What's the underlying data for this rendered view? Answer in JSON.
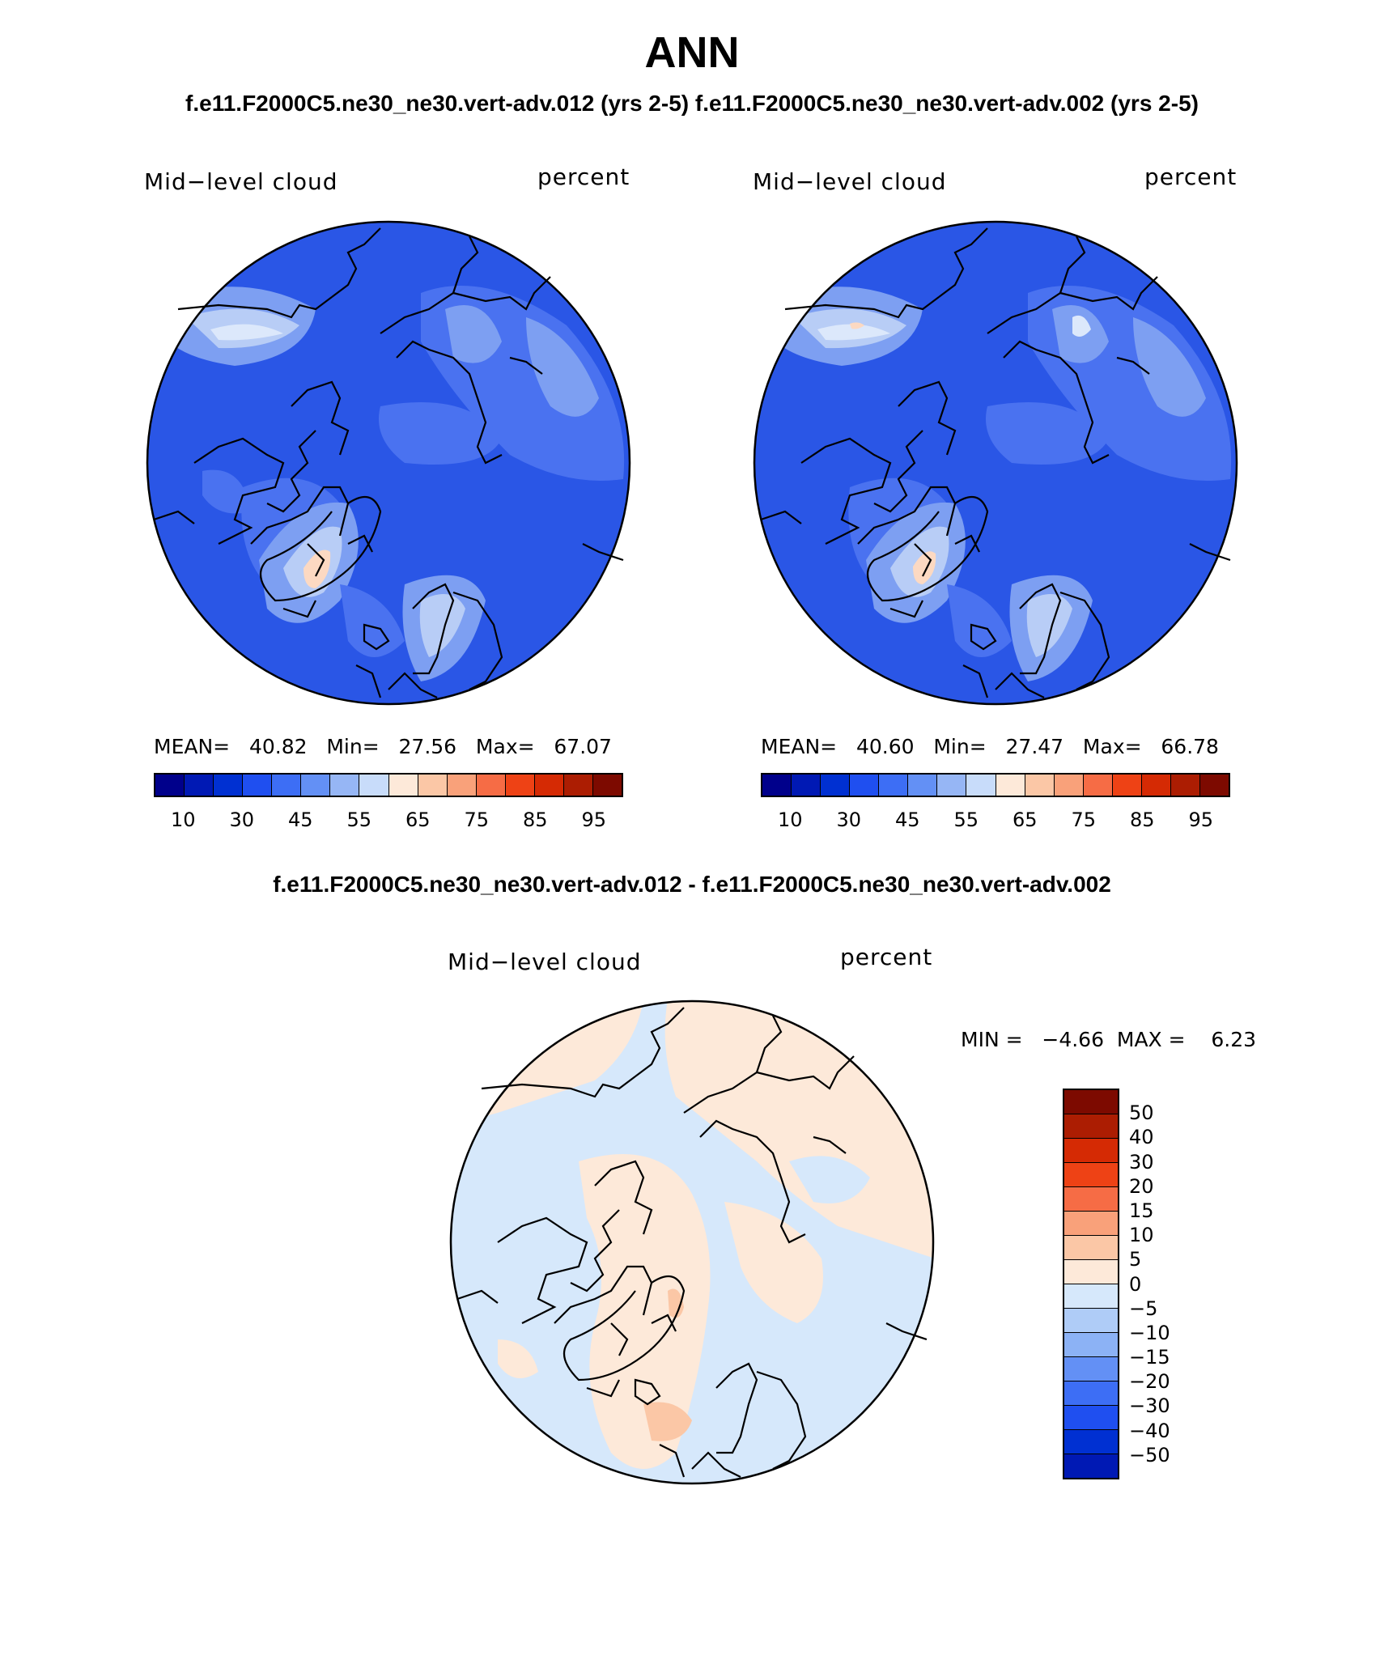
{
  "title": "ANN",
  "subtitle": "f.e11.F2000C5.ne30_ne30.vert-adv.012 (yrs 2-5)  f.e11.F2000C5.ne30_ne30.vert-adv.002 (yrs 2-5)",
  "diff_title": "f.e11.F2000C5.ne30_ne30.vert-adv.012 - f.e11.F2000C5.ne30_ne30.vert-adv.002",
  "panels": [
    {
      "variable": "Mid−level cloud",
      "units": "percent",
      "stats": "MEAN=   40.82   Min=   27.56   Max=   67.07"
    },
    {
      "variable": "Mid−level cloud",
      "units": "percent",
      "stats": "MEAN=   40.60   Min=   27.47   Max=   66.78"
    }
  ],
  "diff_panel": {
    "variable": "Mid−level cloud",
    "units": "percent",
    "stats": "MIN =   −4.66  MAX =    6.23"
  },
  "colorbar_abs": {
    "colors": [
      "#00008b",
      "#0019b4",
      "#0030d2",
      "#1f4ff0",
      "#3d6ef5",
      "#6390f5",
      "#96b6f5",
      "#c8dcfa",
      "#fde9d9",
      "#fbc7a6",
      "#f9a17a",
      "#f66c45",
      "#ee4215",
      "#d52a04",
      "#ac1d02",
      "#7d0a00"
    ],
    "ticks": [
      "10",
      "30",
      "45",
      "55",
      "65",
      "75",
      "85",
      "95"
    ]
  },
  "colorbar_diff": {
    "colors": [
      "#7d0a00",
      "#ac1d02",
      "#d52a04",
      "#ee4215",
      "#f66c45",
      "#f9a17a",
      "#fbc7a6",
      "#fde9d9",
      "#d6e8fb",
      "#afccf7",
      "#8cb2f5",
      "#6390f5",
      "#3d6ef5",
      "#1f4ff0",
      "#0030d2",
      "#0019b4"
    ],
    "ticks": [
      "50",
      "40",
      "30",
      "20",
      "15",
      "10",
      "5",
      "0",
      "−5",
      "−10",
      "−15",
      "−20",
      "−30",
      "−40",
      "−50"
    ]
  },
  "map_colors": {
    "base_blue": "#2a56e6",
    "mid_blue": "#4a72f0",
    "light_blue": "#7d9ff2",
    "pale_blue": "#b8cdf6",
    "very_pale": "#dce8fb",
    "peach": "#fcd9c2",
    "diff_peach": "#fde9d9",
    "diff_blue": "#d6e8fb",
    "diff_orange": "#fbc7a6"
  }
}
